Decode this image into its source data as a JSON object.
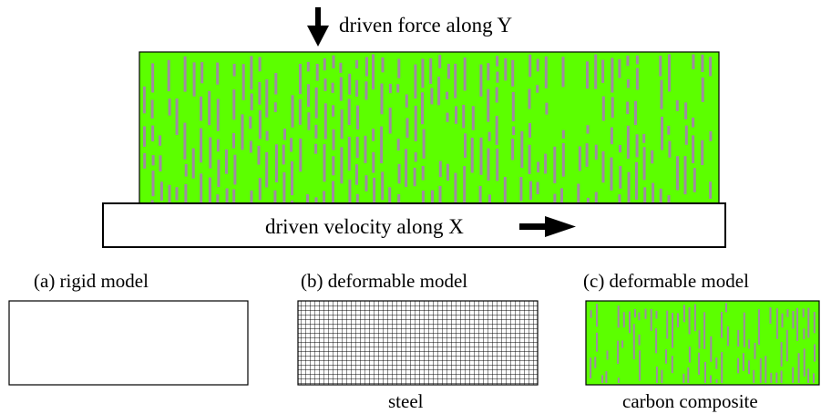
{
  "labels": {
    "force": "driven force along Y",
    "velocity": "driven velocity along X",
    "model_a": "(a)  rigid model",
    "model_b": "(b)  deformable model",
    "model_c": "(c)  deformable model",
    "material_b": "steel",
    "material_c": "carbon composite"
  },
  "colors": {
    "composite_matrix": "#5cff00",
    "composite_fiber": "#a08aa3",
    "outline": "#000000"
  }
}
